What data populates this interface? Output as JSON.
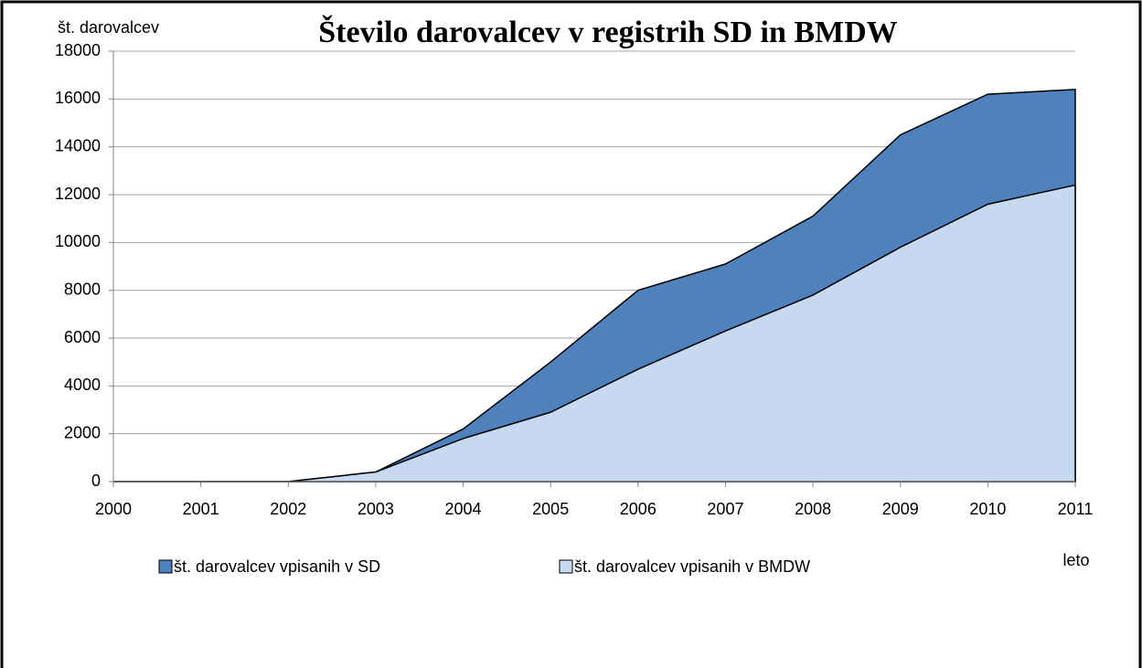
{
  "chart_data": {
    "type": "area",
    "title": "Število darovalcev v registrih SD in BMDW",
    "y_label": "št. darovalcev",
    "x_label": "leto",
    "categories": [
      "2000",
      "2001",
      "2002",
      "2003",
      "2004",
      "2005",
      "2006",
      "2007",
      "2008",
      "2009",
      "2010",
      "2011"
    ],
    "series": [
      {
        "name": "št. darovalcev vpisanih v SD",
        "color": "#4f81bd",
        "values": [
          0,
          0,
          0,
          400,
          2200,
          5000,
          8000,
          9100,
          11100,
          14500,
          16200,
          16400
        ]
      },
      {
        "name": "št. darovalcev vpisanih v BMDW",
        "color": "#c6d9f1",
        "values": [
          0,
          0,
          0,
          400,
          1800,
          2900,
          4700,
          6300,
          7800,
          9800,
          11600,
          12400
        ]
      }
    ],
    "ylim": [
      0,
      18000
    ],
    "yticks": [
      0,
      2000,
      4000,
      6000,
      8000,
      10000,
      12000,
      14000,
      16000,
      18000
    ],
    "grid": true
  }
}
